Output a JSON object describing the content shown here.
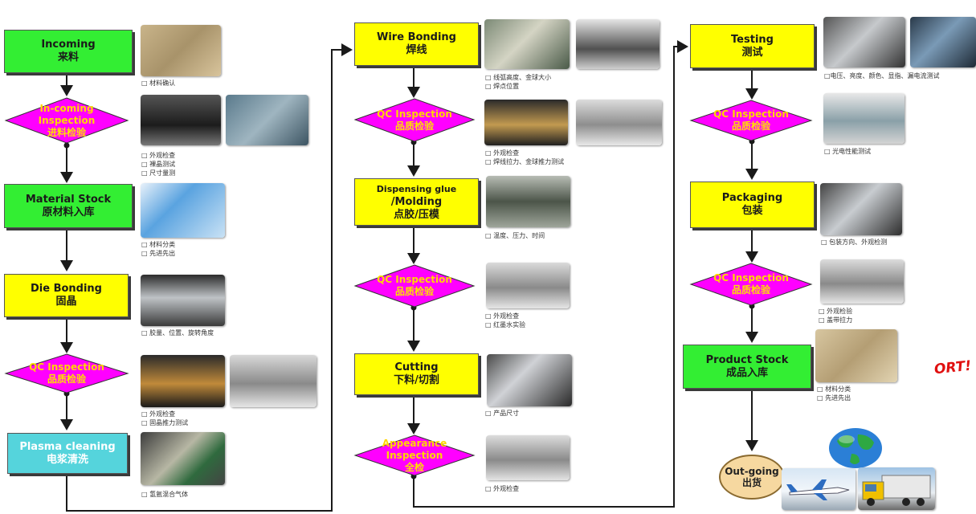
{
  "columns": [
    {
      "steps": [
        {
          "kind": "box",
          "color": "green",
          "l1": "Incoming",
          "l2": "来料",
          "notes": [
            "□ 材料确认"
          ]
        },
        {
          "kind": "diamond",
          "l1": "In-coming",
          "l2": "Inspection",
          "l3": "进料检验",
          "notes": [
            "□ 外观检查",
            "□ 裸晶测试",
            "□ 尺寸量测"
          ]
        },
        {
          "kind": "box",
          "color": "green",
          "l1": "Material Stock",
          "l2": "原材料入库",
          "notes": [
            "□ 材料分类",
            "□ 先进先出"
          ]
        },
        {
          "kind": "box",
          "color": "yellow",
          "l1": "Die Bonding",
          "l2": "固晶",
          "notes": [
            "□ 胶量、位置、旋转角度"
          ]
        },
        {
          "kind": "diamond",
          "l1": "QC  Inspection",
          "l2": "品质检验",
          "notes": [
            "□ 外观检查",
            "□ 固晶推力测试"
          ]
        },
        {
          "kind": "box",
          "color": "cyan",
          "l1": "Plasma cleaning",
          "l2": "电浆清洗",
          "notes": [
            "□ 氢氩混合气体"
          ]
        }
      ]
    },
    {
      "steps": [
        {
          "kind": "box",
          "color": "yellow",
          "l1": "Wire Bonding",
          "l2": "焊线",
          "notes": [
            "□ 线弧高度、金球大小",
            "□ 焊点位置"
          ]
        },
        {
          "kind": "diamond",
          "l1": "QC Inspection",
          "l2": "品质检验",
          "notes": [
            "□ 外观检查",
            "□ 焊线拉力、金球推力测试"
          ]
        },
        {
          "kind": "box",
          "color": "yellow",
          "l1": "Dispensing  glue",
          "l2": "/Molding",
          "l3": "点胶/压模",
          "notes": [
            "□ 温度、压力、时间"
          ]
        },
        {
          "kind": "diamond",
          "l1": "QC Inspection",
          "l2": "品质检验",
          "notes": [
            "□ 外观检查",
            "□ 红墨水实验"
          ]
        },
        {
          "kind": "box",
          "color": "yellow",
          "l1": "Cutting",
          "l2": "下料/切割",
          "notes": [
            "□ 产品尺寸"
          ]
        },
        {
          "kind": "diamond",
          "l1": "Appearance",
          "l2": "Inspection",
          "l3": "全检",
          "notes": [
            "□ 外观检查"
          ]
        }
      ]
    },
    {
      "steps": [
        {
          "kind": "box",
          "color": "yellow",
          "l1": "Testing",
          "l2": "测试",
          "notes": [
            "□电压、亮度、颜色、显指、漏电流测试"
          ]
        },
        {
          "kind": "diamond",
          "l1": "QC Inspection",
          "l2": "品质检验",
          "notes": [
            "□ 光电性能测试"
          ]
        },
        {
          "kind": "box",
          "color": "yellow",
          "l1": "Packaging",
          "l2": "包装",
          "notes": [
            "□ 包装方向、外观检测"
          ]
        },
        {
          "kind": "diamond",
          "l1": "QC Inspection",
          "l2": "品质检验",
          "notes": [
            "□ 外观检验",
            "□ 盖带拉力"
          ]
        },
        {
          "kind": "box",
          "color": "green",
          "l1": "Product Stock",
          "l2": "成品入库",
          "notes": [
            "□ 材料分类",
            "□ 先进先出"
          ]
        }
      ]
    }
  ],
  "outgoing": {
    "l1": "Out-going",
    "l2": "出货"
  },
  "ort_label": "ORT!",
  "colors": {
    "green": "#33ee33",
    "yellow": "#ffff00",
    "cyan": "#55d4dc",
    "magenta": "#ff00ff",
    "arrow": "#1a1a1a"
  }
}
